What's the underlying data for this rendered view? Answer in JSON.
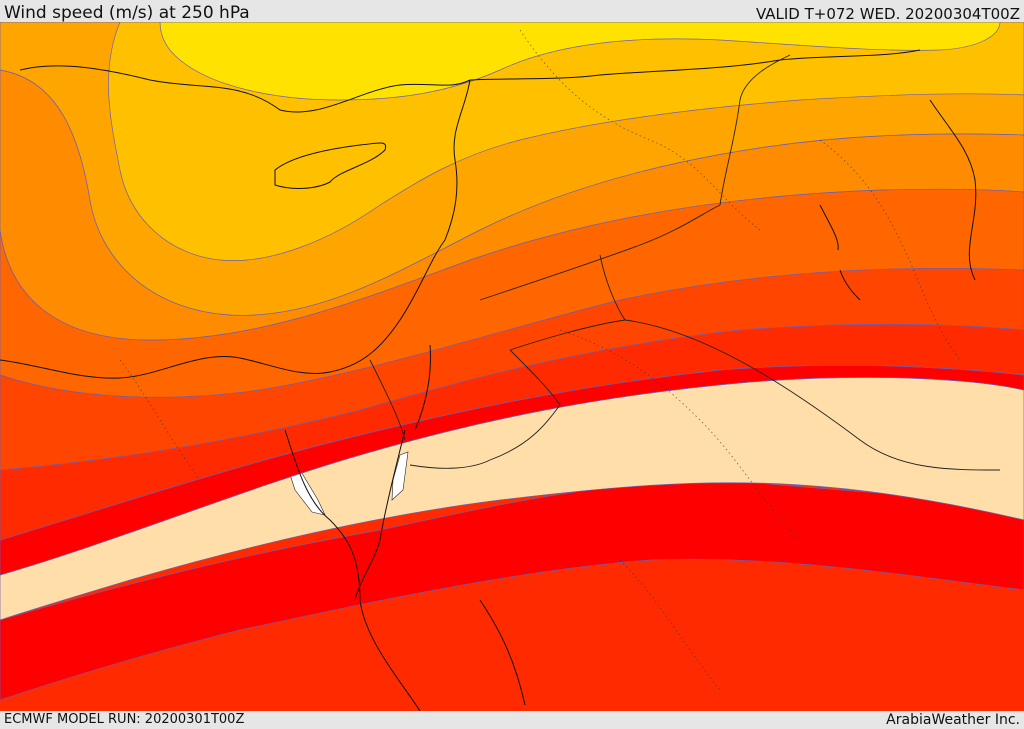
{
  "header": {
    "title": "Wind speed (m/s) at 250 hPa",
    "valid": "VALID T+072 WED. 20200304T00Z"
  },
  "footer": {
    "model_run": "ECMWF MODEL RUN: 20200301T00Z",
    "provider": "ArabiaWeather Inc."
  },
  "map": {
    "variable": "wind-speed-250hPa",
    "region": "eastern-mediterranean-middle-east",
    "palette": {
      "yellow": "#ffe200",
      "light_orange": "#ffc000",
      "orange": "#ffa500",
      "dark_orange": "#ff8c00",
      "orange_red": "#ff6600",
      "red_orange": "#ff4500",
      "bright_red": "#ff2a00",
      "red": "#ff0000",
      "jet_core": "#ffdeaa",
      "max": "#ffffff"
    },
    "band_count": 10
  }
}
